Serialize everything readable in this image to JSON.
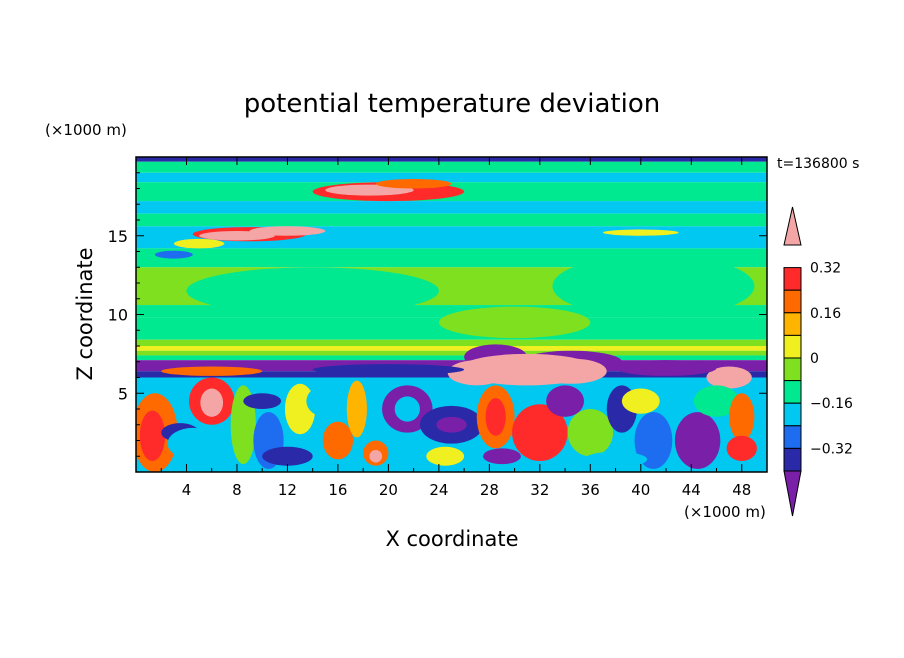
{
  "chart_data": {
    "type": "heatmap",
    "title": "potential temperature deviation",
    "time_label": "t=136800 s",
    "xlabel": "X coordinate",
    "ylabel": "Z coordinate",
    "x_unit": "(×1000 m)",
    "y_unit": "(×1000 m)",
    "xlim": [
      0,
      50
    ],
    "ylim": [
      0,
      20
    ],
    "x_ticks": [
      "4",
      "8",
      "12",
      "16",
      "20",
      "24",
      "28",
      "32",
      "36",
      "40",
      "44",
      "48"
    ],
    "y_ticks": [
      "5",
      "10",
      "15"
    ],
    "colorbar": {
      "levels": [
        "0.32",
        "0.16",
        "0",
        "−0.16",
        "−0.32"
      ],
      "colors": [
        "#7a1fa8",
        "#2a2aa8",
        "#1e6cf0",
        "#00c8f0",
        "#00e890",
        "#7fe020",
        "#f0f020",
        "#ffb400",
        "#ff6a00",
        "#ff2a2a",
        "#f4a6a6"
      ]
    },
    "regions": [
      {
        "name": "upper-band",
        "color": "#00e890",
        "x": [
          0,
          50
        ],
        "z": [
          15.5,
          20
        ]
      },
      {
        "name": "upper-warm-layer",
        "color": "#ff6a00",
        "x": [
          12,
          25
        ],
        "z": [
          17,
          18.5
        ]
      },
      {
        "name": "mid-band",
        "color": "#7fe020",
        "x": [
          0,
          50
        ],
        "z": [
          8,
          15.5
        ]
      },
      {
        "name": "cold-layer",
        "color": "#7a1fa8",
        "x": [
          0,
          50
        ],
        "z": [
          6,
          7
        ]
      },
      {
        "name": "warm-plume",
        "color": "#f4a6a6",
        "x": [
          26,
          40
        ],
        "z": [
          5.5,
          8
        ]
      },
      {
        "name": "turbulent-boundary-layer",
        "color": "#00c8f0",
        "x": [
          0,
          50
        ],
        "z": [
          0,
          6
        ]
      }
    ]
  }
}
